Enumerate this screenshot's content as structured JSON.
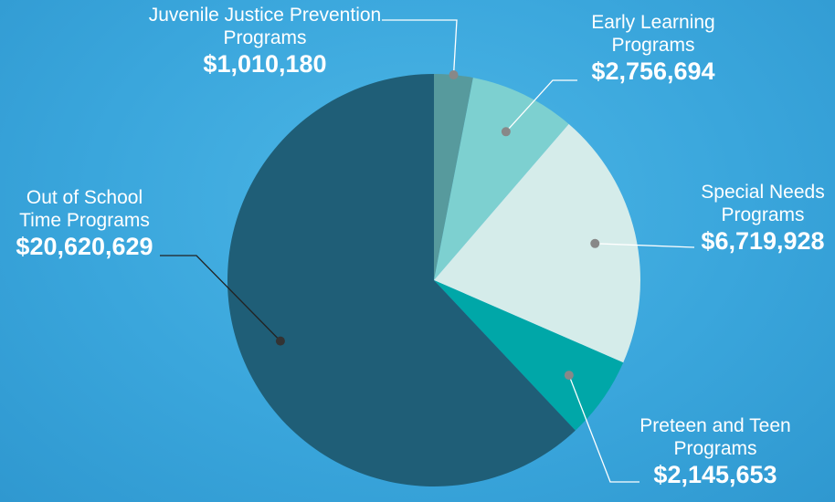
{
  "chart_data": {
    "type": "pie",
    "categories": [
      "Juvenile Justice Prevention Programs",
      "Early Learning Programs",
      "Special Needs Programs",
      "Preteen and Teen Programs",
      "Out of School Time Programs"
    ],
    "values": [
      1010180,
      2756694,
      6719928,
      2145653,
      20620629
    ],
    "value_labels": [
      "$1,010,180",
      "$2,756,694",
      "$6,719,928",
      "$2,145,653",
      "$20,620,629"
    ],
    "colors": [
      "#579a9d",
      "#7dd0d0",
      "#d5ecea",
      "#00a7a8",
      "#1f5e77"
    ]
  }
}
